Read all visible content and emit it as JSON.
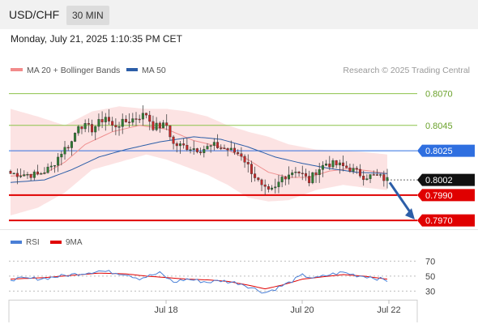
{
  "header": {
    "symbol": "USD/CHF",
    "timeframe": "30 MIN",
    "datetime": "Monday, July 21, 2025 1:10:35 PM CET"
  },
  "legend": [
    {
      "label": "MA 20 + Bollinger Bands",
      "color": "#f28b8b"
    },
    {
      "label": "MA 50",
      "color": "#2c5ea8"
    }
  ],
  "credit": "Research © 2025 Trading Central",
  "colors": {
    "up": "#2e7d32",
    "down": "#c62828",
    "resistance": "#8bc34a",
    "blue": "#2f6fe0",
    "support": "#e00000",
    "price": "#111111"
  },
  "chart_data": [
    {
      "type": "candlestick",
      "y_axis_side": "right",
      "ylim": [
        0.7965,
        0.808
      ],
      "xtick_labels": [
        "Jul 18",
        "Jul 20",
        "Jul 22"
      ],
      "levels": [
        {
          "value": 0.807,
          "label": "0.8070",
          "role": "resistance"
        },
        {
          "value": 0.8045,
          "label": "0.8045",
          "role": "resistance"
        },
        {
          "value": 0.8025,
          "label": "0.8025",
          "role": "pivot"
        },
        {
          "value": 0.8002,
          "label": "0.8002",
          "role": "last-price"
        },
        {
          "value": 0.799,
          "label": "0.7990",
          "role": "support"
        },
        {
          "value": 0.797,
          "label": "0.7970",
          "role": "support"
        }
      ],
      "forecast_arrow": {
        "from": 0.8,
        "to": 0.7972,
        "direction": "down"
      },
      "candle_count": 112,
      "close_path": [
        [
          0,
          0.8007
        ],
        [
          8,
          0.8006
        ],
        [
          12,
          0.8012
        ],
        [
          15,
          0.8024
        ],
        [
          18,
          0.8032
        ],
        [
          20,
          0.8046
        ],
        [
          24,
          0.8042
        ],
        [
          28,
          0.8052
        ],
        [
          30,
          0.8044
        ],
        [
          36,
          0.805
        ],
        [
          40,
          0.8054
        ],
        [
          42,
          0.8044
        ],
        [
          46,
          0.8045
        ],
        [
          48,
          0.803
        ],
        [
          52,
          0.8028
        ],
        [
          56,
          0.8026
        ],
        [
          60,
          0.8029
        ],
        [
          64,
          0.8026
        ],
        [
          68,
          0.8022
        ],
        [
          70,
          0.8013
        ],
        [
          72,
          0.8005
        ],
        [
          74,
          0.7996
        ],
        [
          76,
          0.7992
        ],
        [
          78,
          0.7995
        ],
        [
          80,
          0.8004
        ],
        [
          84,
          0.801
        ],
        [
          86,
          0.8006
        ],
        [
          88,
          0.8001
        ],
        [
          90,
          0.8009
        ],
        [
          93,
          0.8015
        ],
        [
          96,
          0.8014
        ],
        [
          100,
          0.8011
        ],
        [
          104,
          0.8005
        ],
        [
          108,
          0.8005
        ],
        [
          111,
          0.8002
        ]
      ],
      "ma20_path": [
        [
          0,
          0.8005
        ],
        [
          10,
          0.8007
        ],
        [
          16,
          0.8016
        ],
        [
          22,
          0.803
        ],
        [
          30,
          0.804
        ],
        [
          38,
          0.8045
        ],
        [
          46,
          0.8042
        ],
        [
          54,
          0.8033
        ],
        [
          62,
          0.8028
        ],
        [
          70,
          0.8018
        ],
        [
          76,
          0.8008
        ],
        [
          82,
          0.8004
        ],
        [
          88,
          0.8004
        ],
        [
          94,
          0.8009
        ],
        [
          100,
          0.8011
        ],
        [
          106,
          0.8009
        ],
        [
          111,
          0.8007
        ]
      ],
      "ma50_path": [
        [
          0,
          0.8
        ],
        [
          10,
          0.8002
        ],
        [
          18,
          0.801
        ],
        [
          26,
          0.802
        ],
        [
          34,
          0.8026
        ],
        [
          44,
          0.8032
        ],
        [
          54,
          0.8036
        ],
        [
          62,
          0.8034
        ],
        [
          70,
          0.8028
        ],
        [
          78,
          0.802
        ],
        [
          86,
          0.8015
        ],
        [
          94,
          0.8011
        ],
        [
          102,
          0.8008
        ],
        [
          111,
          0.8007
        ]
      ],
      "bb_upper_path": [
        [
          0,
          0.8058
        ],
        [
          8,
          0.8052
        ],
        [
          16,
          0.8045
        ],
        [
          24,
          0.8056
        ],
        [
          32,
          0.806
        ],
        [
          40,
          0.8058
        ],
        [
          46,
          0.8058
        ],
        [
          52,
          0.8056
        ],
        [
          58,
          0.8052
        ],
        [
          64,
          0.8045
        ],
        [
          70,
          0.804
        ],
        [
          76,
          0.8036
        ],
        [
          82,
          0.803
        ],
        [
          90,
          0.8026
        ],
        [
          98,
          0.8025
        ],
        [
          104,
          0.8024
        ],
        [
          111,
          0.8022
        ]
      ],
      "bb_lower_path": [
        [
          0,
          0.7974
        ],
        [
          8,
          0.798
        ],
        [
          16,
          0.7992
        ],
        [
          24,
          0.801
        ],
        [
          32,
          0.8016
        ],
        [
          40,
          0.8022
        ],
        [
          46,
          0.8018
        ],
        [
          52,
          0.8012
        ],
        [
          58,
          0.8006
        ],
        [
          64,
          0.7998
        ],
        [
          70,
          0.7988
        ],
        [
          76,
          0.7985
        ],
        [
          82,
          0.7986
        ],
        [
          90,
          0.7994
        ],
        [
          98,
          0.7998
        ],
        [
          104,
          0.7996
        ],
        [
          111,
          0.7994
        ]
      ]
    },
    {
      "type": "line",
      "legend": [
        {
          "label": "RSI",
          "color": "#4a7fd6"
        },
        {
          "label": "9MA",
          "color": "#e00000"
        }
      ],
      "ylim": [
        25,
        78
      ],
      "yticks": [
        70,
        50,
        30
      ],
      "rsi_path": [
        [
          0,
          46
        ],
        [
          10,
          47
        ],
        [
          18,
          52
        ],
        [
          26,
          57
        ],
        [
          34,
          53
        ],
        [
          38,
          47
        ],
        [
          44,
          54
        ],
        [
          48,
          42
        ],
        [
          52,
          46
        ],
        [
          58,
          42
        ],
        [
          62,
          44
        ],
        [
          68,
          40
        ],
        [
          72,
          33
        ],
        [
          75,
          28
        ],
        [
          78,
          33
        ],
        [
          82,
          41
        ],
        [
          86,
          51
        ],
        [
          90,
          47
        ],
        [
          94,
          52
        ],
        [
          98,
          55
        ],
        [
          102,
          51
        ],
        [
          106,
          49
        ],
        [
          111,
          44
        ]
      ],
      "ma9_path": [
        [
          0,
          46
        ],
        [
          10,
          48
        ],
        [
          18,
          51
        ],
        [
          26,
          54
        ],
        [
          34,
          53
        ],
        [
          40,
          50
        ],
        [
          46,
          48
        ],
        [
          52,
          46
        ],
        [
          58,
          45
        ],
        [
          64,
          43
        ],
        [
          70,
          38
        ],
        [
          75,
          33
        ],
        [
          80,
          38
        ],
        [
          86,
          46
        ],
        [
          92,
          49
        ],
        [
          98,
          52
        ],
        [
          104,
          50
        ],
        [
          111,
          46
        ]
      ]
    }
  ]
}
